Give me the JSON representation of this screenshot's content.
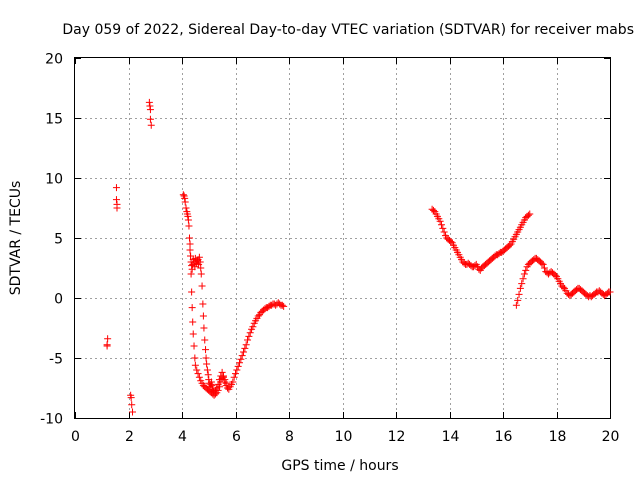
{
  "chart_data": {
    "type": "scatter",
    "title": "Day 059 of 2022, Sidereal Day-to-day VTEC variation (SDTVAR) for receiver mabs",
    "xlabel": "GPS time / hours",
    "ylabel": "SDTVAR / TECUs",
    "xlim": [
      0,
      20
    ],
    "ylim": [
      -10,
      20
    ],
    "xticks": [
      0,
      2,
      4,
      6,
      8,
      10,
      12,
      14,
      16,
      18,
      20
    ],
    "yticks": [
      -10,
      -5,
      0,
      5,
      10,
      15,
      20
    ],
    "grid": true,
    "marker": "+",
    "color": "#ff0000",
    "series": [
      {
        "name": "SDTVAR",
        "x": [
          1.2,
          1.2,
          1.22,
          1.55,
          1.55,
          1.57,
          1.57,
          2.08,
          2.1,
          2.12,
          2.15,
          2.78,
          2.8,
          2.82,
          2.82,
          2.85,
          4.05,
          4.08,
          4.1,
          4.12,
          4.15,
          4.18,
          4.2,
          4.22,
          4.24,
          4.26,
          4.28,
          4.3,
          4.32,
          4.34,
          4.36,
          4.38,
          4.4,
          4.42,
          4.45,
          4.48,
          4.5,
          4.52,
          4.55,
          4.58,
          4.6,
          4.62,
          4.65,
          4.68,
          4.7,
          4.72,
          4.75,
          4.78,
          4.8,
          4.82,
          4.85,
          4.88,
          4.9,
          4.92,
          4.95,
          4.98,
          5.0,
          5.02,
          5.05,
          5.08,
          5.1,
          5.12,
          5.15,
          5.18,
          5.2,
          5.25,
          5.3,
          5.35,
          5.4,
          5.45,
          5.5,
          5.55,
          5.6,
          5.65,
          5.7,
          5.75,
          5.8,
          5.85,
          5.9,
          5.95,
          6.0,
          6.05,
          6.1,
          6.15,
          6.2,
          6.25,
          6.3,
          6.35,
          6.4,
          6.45,
          6.5,
          6.55,
          6.6,
          6.65,
          6.7,
          6.75,
          6.8,
          6.85,
          6.9,
          6.95,
          7.0,
          7.05,
          7.1,
          7.15,
          7.2,
          7.25,
          7.3,
          7.35,
          7.4,
          7.45,
          7.5,
          7.55,
          7.6,
          7.65,
          7.7,
          7.75,
          7.8,
          4.3,
          4.32,
          4.34,
          4.36,
          4.38,
          4.4,
          4.42,
          4.45,
          4.48,
          4.5,
          4.55,
          4.6,
          4.65,
          4.7,
          4.75,
          4.8,
          4.85,
          4.9,
          4.95,
          5.0,
          5.05,
          5.1,
          5.15,
          5.2,
          5.25,
          5.3,
          5.35,
          5.4,
          5.45,
          5.5,
          5.55,
          5.6,
          5.65,
          13.35,
          13.4,
          13.45,
          13.5,
          13.55,
          13.6,
          13.65,
          13.7,
          13.75,
          13.8,
          13.85,
          13.9,
          13.95,
          14.0,
          14.05,
          14.1,
          14.15,
          14.2,
          14.25,
          14.3,
          14.35,
          14.4,
          14.45,
          14.5,
          14.55,
          14.6,
          14.65,
          14.7,
          14.75,
          14.8,
          14.85,
          14.9,
          14.95,
          15.0,
          15.05,
          15.1,
          15.15,
          15.2,
          15.25,
          15.3,
          15.35,
          15.4,
          15.45,
          15.5,
          15.55,
          15.6,
          15.65,
          15.7,
          15.75,
          15.8,
          15.85,
          15.9,
          15.95,
          16.0,
          16.05,
          16.1,
          16.15,
          16.2,
          16.25,
          16.3,
          16.35,
          16.4,
          16.45,
          16.5,
          16.55,
          16.6,
          16.65,
          16.7,
          16.75,
          16.8,
          16.85,
          16.9,
          16.95,
          17.0,
          16.5,
          16.55,
          16.6,
          16.65,
          16.7,
          16.75,
          16.8,
          16.85,
          16.9,
          16.95,
          17.0,
          17.05,
          17.1,
          17.15,
          17.2,
          17.25,
          17.3,
          17.35,
          17.4,
          17.45,
          17.5,
          17.55,
          17.6,
          17.65,
          17.7,
          17.75,
          17.8,
          17.85,
          17.9,
          17.95,
          18.0,
          18.05,
          18.1,
          18.15,
          18.2,
          18.25,
          18.3,
          18.35,
          18.4,
          18.45,
          18.5,
          18.55,
          18.6,
          18.65,
          18.7,
          18.75,
          18.8,
          18.85,
          18.9,
          18.95,
          19.0,
          19.05,
          19.1,
          19.15,
          19.2,
          19.25,
          19.3,
          19.35,
          19.4,
          19.45,
          19.5,
          19.55,
          19.6,
          19.65,
          19.7,
          19.75,
          19.8,
          19.85,
          19.9,
          19.95,
          20.0
        ],
        "y": [
          -3.9,
          -4.0,
          -3.4,
          9.2,
          8.2,
          7.8,
          7.5,
          -8.1,
          -8.3,
          -8.9,
          -9.5,
          16.3,
          16.0,
          15.7,
          14.9,
          14.4,
          8.6,
          8.5,
          8.3,
          8.0,
          7.5,
          7.2,
          7.0,
          6.8,
          6.5,
          6.0,
          5.0,
          4.0,
          3.5,
          3.0,
          2.7,
          2.4,
          2.8,
          3.2,
          3.0,
          2.6,
          3.3,
          3.0,
          2.9,
          3.1,
          3.2,
          2.8,
          3.4,
          3.0,
          2.5,
          2.0,
          1.0,
          -0.5,
          -1.5,
          -2.5,
          -3.5,
          -4.3,
          -5.0,
          -5.5,
          -6.0,
          -6.4,
          -6.8,
          -7.1,
          -7.4,
          -7.2,
          -7.0,
          -7.3,
          -7.6,
          -7.8,
          -8.0,
          -7.7,
          -7.5,
          -7.2,
          -6.8,
          -6.5,
          -6.2,
          -6.6,
          -7.0,
          -7.3,
          -7.5,
          -7.6,
          -7.4,
          -7.2,
          -7.0,
          -6.6,
          -6.3,
          -6.0,
          -5.7,
          -5.4,
          -5.1,
          -4.8,
          -4.5,
          -4.2,
          -3.9,
          -3.5,
          -3.2,
          -2.9,
          -2.6,
          -2.4,
          -2.1,
          -1.9,
          -1.7,
          -1.5,
          -1.4,
          -1.2,
          -1.1,
          -1.0,
          -0.9,
          -0.8,
          -0.8,
          -0.7,
          -0.6,
          -0.6,
          -0.5,
          -0.5,
          -0.6,
          -0.5,
          -0.4,
          -0.5,
          -0.6,
          -0.6,
          -0.7,
          4.5,
          3.5,
          2.0,
          0.5,
          -0.8,
          -2.0,
          -3.0,
          -4.0,
          -5.0,
          -5.6,
          -6.0,
          -6.3,
          -6.6,
          -6.9,
          -7.1,
          -7.3,
          -7.4,
          -7.5,
          -7.6,
          -7.7,
          -7.8,
          -7.9,
          -8.0,
          -8.1,
          -8.0,
          -7.9,
          -7.7,
          -7.4,
          -7.0,
          -6.7,
          -6.5,
          -6.8,
          -7.1,
          7.4,
          7.3,
          7.2,
          7.0,
          6.8,
          6.6,
          6.4,
          6.1,
          5.8,
          5.5,
          5.2,
          5.0,
          4.9,
          4.8,
          4.7,
          4.6,
          4.4,
          4.2,
          4.0,
          3.8,
          3.6,
          3.4,
          3.2,
          3.0,
          2.9,
          2.8,
          2.8,
          2.9,
          2.8,
          2.7,
          2.6,
          2.6,
          2.7,
          2.8,
          2.6,
          2.4,
          2.3,
          2.5,
          2.6,
          2.7,
          2.8,
          2.9,
          3.0,
          3.1,
          3.2,
          3.3,
          3.4,
          3.5,
          3.6,
          3.6,
          3.7,
          3.8,
          3.8,
          3.9,
          4.0,
          4.1,
          4.2,
          4.3,
          4.4,
          4.5,
          4.7,
          4.9,
          5.1,
          5.3,
          5.5,
          5.7,
          5.9,
          6.1,
          6.3,
          6.5,
          6.7,
          6.8,
          6.9,
          7.0,
          -0.6,
          -0.2,
          0.3,
          0.8,
          1.2,
          1.6,
          2.0,
          2.3,
          2.6,
          2.8,
          2.9,
          3.0,
          3.1,
          3.2,
          3.3,
          3.3,
          3.2,
          3.1,
          3.0,
          2.9,
          2.8,
          2.5,
          2.2,
          2.1,
          2.0,
          2.1,
          2.2,
          2.1,
          2.0,
          1.9,
          1.8,
          1.6,
          1.4,
          1.2,
          1.0,
          0.9,
          0.8,
          0.6,
          0.4,
          0.3,
          0.2,
          0.3,
          0.4,
          0.5,
          0.6,
          0.7,
          0.8,
          0.8,
          0.7,
          0.6,
          0.5,
          0.4,
          0.3,
          0.2,
          0.1,
          0.2,
          0.1,
          0.2,
          0.3,
          0.4,
          0.5,
          0.5,
          0.6,
          0.5,
          0.4,
          0.3,
          0.2,
          0.3,
          0.4,
          0.5,
          0.5
        ]
      }
    ]
  }
}
